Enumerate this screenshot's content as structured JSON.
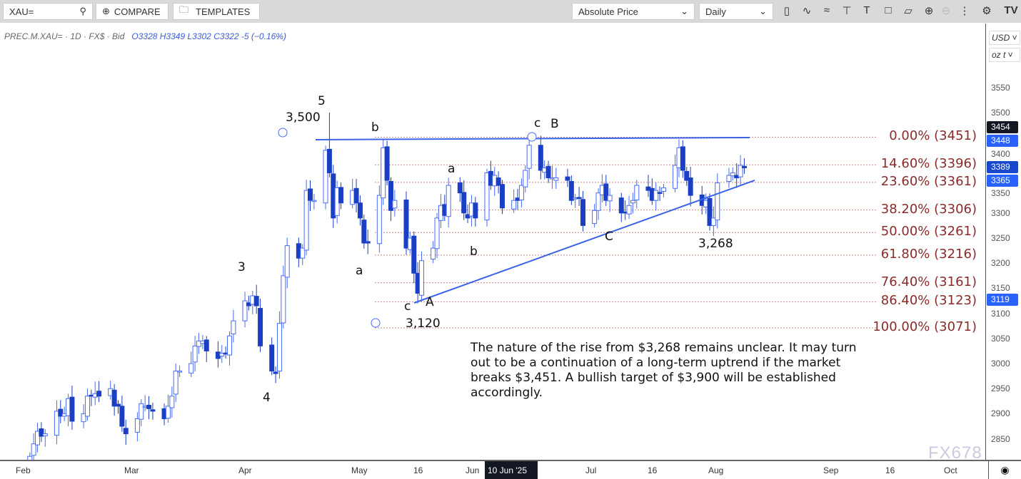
{
  "toolbar": {
    "symbol": "XAU=",
    "compare": "COMPARE",
    "templates": "TEMPLATES",
    "price_mode": "Absolute Price",
    "interval": "Daily",
    "icons": [
      "candles-icon",
      "indicators-icon",
      "studies-icon",
      "drawing-icon",
      "text-icon",
      "shapes-icon",
      "pattern-icon",
      "zoom-in-icon",
      "zoom-out-icon",
      "more-icon",
      "settings-icon",
      "tradingview-logo"
    ]
  },
  "legend": {
    "instrument": "PREC.M.XAU= · 1D · FX$ · Bid",
    "open": "O3328",
    "high": "H3349",
    "low": "L3302",
    "close": "C3322",
    "change": "-5 (−0.16%)"
  },
  "price_axis": {
    "currency": "USD",
    "unit": "oz t",
    "ticks": [
      "3550",
      "3500",
      "3400",
      "3350",
      "3300",
      "3250",
      "3200",
      "3150",
      "3100",
      "3050",
      "3000",
      "2950",
      "2900",
      "2850"
    ],
    "tags": [
      {
        "label": "3448",
        "color": "#2962ff"
      },
      {
        "label": "3454",
        "color": "#131722"
      },
      {
        "label": "3389",
        "color": "#1848cc"
      },
      {
        "label": "3365",
        "color": "#2962ff"
      },
      {
        "label": "3119",
        "color": "#2962ff"
      }
    ]
  },
  "time_axis": {
    "labels": [
      "Feb",
      "Mar",
      "Apr",
      "May",
      "16",
      "Jun",
      "Jul",
      "16",
      "Aug",
      "Sep",
      "16",
      "Oct"
    ],
    "crosshair": "10 Jun '25"
  },
  "fib": [
    {
      "label": "0.00% (3451)",
      "price": 3451
    },
    {
      "label": "14.60% (3396)",
      "price": 3396
    },
    {
      "label": "23.60% (3361)",
      "price": 3361
    },
    {
      "label": "38.20% (3306)",
      "price": 3306
    },
    {
      "label": "50.00% (3261)",
      "price": 3261
    },
    {
      "label": "61.80% (3216)",
      "price": 3216
    },
    {
      "label": "76.40% (3161)",
      "price": 3161
    },
    {
      "label": "86.40% (3123)",
      "price": 3123
    },
    {
      "label": "100.00% (3071)",
      "price": 3071
    }
  ],
  "annotations": {
    "w5": "5",
    "p3500": "3,500",
    "w3": "3",
    "w4": "4",
    "a1": "a",
    "b1": "b",
    "c1": "c",
    "A": "A",
    "p3120": "3,120",
    "a2": "a",
    "b2": "b",
    "c2": "c",
    "B": "B",
    "C": "C",
    "p3268": "3,268"
  },
  "note": "The nature of the rise from $3,268 remains unclear. It may turn out to be a continuation of a long-term uptrend if the market breaks $3,451. A bullish target of $3,900 will be established accordingly.",
  "watermark": "FX678",
  "chart_data": {
    "type": "candlestick",
    "start_date": "2025-02-03",
    "colors": {
      "up": "#4a6cf7",
      "down": "#1a3fc4"
    },
    "closes": [
      2815,
      2840,
      2865,
      2855,
      2860,
      2905,
      2895,
      2900,
      2930,
      2885,
      2900,
      2935,
      2935,
      2940,
      2935,
      2950,
      2915,
      2915,
      2875,
      2860,
      2890,
      2920,
      2915,
      2910,
      2905,
      2890,
      2915,
      2935,
      2985,
      2985,
      3000,
      3035,
      3045,
      3045,
      3025,
      3010,
      3020,
      3020,
      3055,
      3085,
      3125,
      3115,
      3135,
      3115,
      3035,
      2985,
      2980,
      3080,
      3175,
      3235,
      3210,
      3230,
      3345,
      3325,
      3325,
      3425,
      3380,
      3290,
      3350,
      3320,
      3345,
      3320,
      3290,
      3240,
      3240,
      3335,
      3430,
      3365,
      3305,
      3325,
      3230,
      3250,
      3180,
      3140,
      3205,
      3230,
      3290,
      3315,
      3295,
      3355,
      3340,
      3300,
      3290,
      3320,
      3290,
      3380,
      3355,
      3375,
      3355,
      3310,
      3325,
      3325,
      3355,
      3385,
      3435,
      3385,
      3390,
      3370,
      3370,
      3370,
      3365,
      3325,
      3330,
      3330,
      3275,
      3305,
      3340,
      3355,
      3325,
      3335,
      3300,
      3300,
      3315,
      3325,
      3355,
      3345,
      3325,
      3345,
      3340,
      3350,
      3395,
      3430,
      3385,
      3365,
      3335,
      3315,
      3325,
      3275,
      3290,
      3360,
      3375,
      3380,
      3370,
      3395,
      3390
    ],
    "extreme_high": {
      "index": 56,
      "value": 3500
    },
    "extreme_low": {
      "index": 73,
      "value": 3120
    },
    "ylim": [
      2820,
      3600
    ]
  }
}
